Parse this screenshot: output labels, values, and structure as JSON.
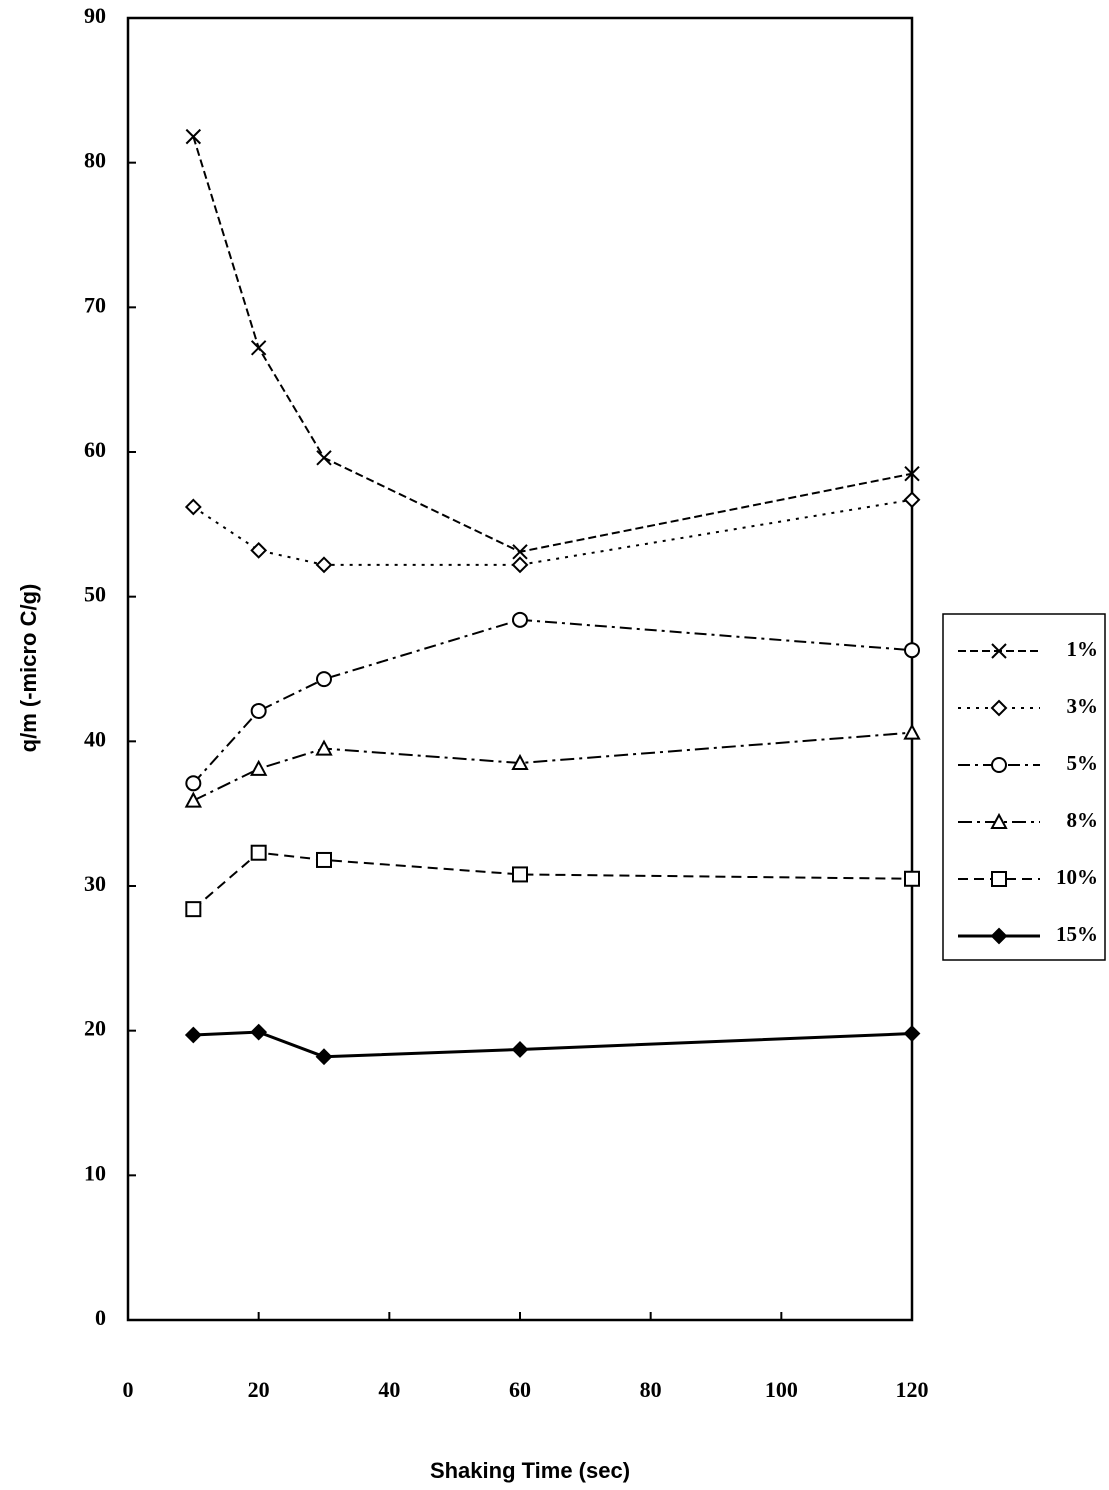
{
  "chart_data": {
    "type": "line",
    "x_label": "Shaking Time (sec)",
    "y_label": "q/m (-micro C/g)",
    "x": [
      10,
      20,
      30,
      60,
      120
    ],
    "series": [
      {
        "name": "1%",
        "color": "#000000",
        "marker": "x",
        "dash": "8 4",
        "values": [
          81.8,
          67.2,
          59.6,
          53.1,
          58.5
        ]
      },
      {
        "name": "3%",
        "color": "#000000",
        "marker": "diamond",
        "dash": "3 6",
        "values": [
          56.2,
          53.2,
          52.2,
          52.2,
          56.7
        ]
      },
      {
        "name": "5%",
        "color": "#000000",
        "marker": "circle",
        "dash": "12 5 3 5",
        "values": [
          37.1,
          42.1,
          44.3,
          48.4,
          46.3
        ]
      },
      {
        "name": "8%",
        "color": "#000000",
        "marker": "triangle",
        "dash": "14 5 3 5",
        "values": [
          35.9,
          38.1,
          39.5,
          38.5,
          40.6
        ]
      },
      {
        "name": "10%",
        "color": "#000000",
        "marker": "square",
        "dash": "10 6",
        "values": [
          28.4,
          32.3,
          31.8,
          30.8,
          30.5
        ]
      },
      {
        "name": "15%",
        "color": "#000000",
        "marker": "filled-diamond",
        "dash": "none",
        "values": [
          19.7,
          19.9,
          18.2,
          18.7,
          19.8
        ]
      }
    ],
    "xlim": [
      0,
      120
    ],
    "xticks": [
      0,
      20,
      40,
      60,
      80,
      100,
      120
    ],
    "ylim": [
      0,
      90
    ],
    "yticks": [
      0,
      10,
      20,
      30,
      40,
      50,
      60,
      70,
      80,
      90
    ],
    "legend": "right"
  }
}
